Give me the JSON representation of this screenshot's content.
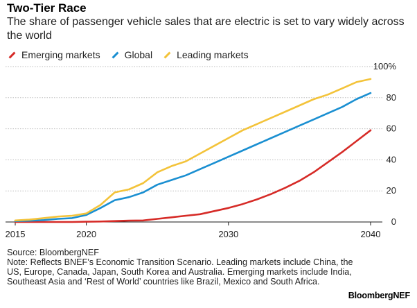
{
  "header": {
    "title": "Two-Tier Race",
    "subtitle": "The share of passenger vehicle sales that are electric is set to vary widely across the world"
  },
  "legend": [
    {
      "label": "Emerging markets",
      "color": "#d62b27"
    },
    {
      "label": "Global",
      "color": "#1a8fd1"
    },
    {
      "label": "Leading markets",
      "color": "#f3c33a"
    }
  ],
  "chart_data": {
    "type": "line",
    "x_ticks": [
      2015,
      2020,
      2030,
      2040
    ],
    "y_ticks": [
      0,
      20,
      40,
      60,
      80,
      100
    ],
    "y_tick_labels": [
      "0",
      "20",
      "40",
      "60",
      "80",
      "100%"
    ],
    "xlim": [
      2015,
      2040
    ],
    "ylim": [
      0,
      100
    ],
    "grid": "horizontal dotted",
    "legend_position": "top-left",
    "x": [
      2015,
      2016,
      2017,
      2018,
      2019,
      2020,
      2021,
      2022,
      2023,
      2024,
      2025,
      2026,
      2027,
      2028,
      2029,
      2030,
      2031,
      2032,
      2033,
      2034,
      2035,
      2036,
      2037,
      2038,
      2039,
      2040
    ],
    "series": [
      {
        "name": "Emerging markets",
        "color": "#d62b27",
        "values": [
          0,
          0,
          0,
          0,
          0,
          0.2,
          0.3,
          0.6,
          0.9,
          1,
          2,
          3,
          4,
          5,
          7,
          9,
          11.5,
          14.5,
          18,
          22,
          26.5,
          32,
          38.5,
          45,
          52,
          59
        ]
      },
      {
        "name": "Global",
        "color": "#1a8fd1",
        "values": [
          0.6,
          0.8,
          1.2,
          2,
          2.5,
          4.5,
          9,
          14,
          16,
          19,
          24,
          27,
          30,
          34,
          38,
          42,
          46,
          50,
          54,
          58,
          62,
          66,
          70,
          74,
          79,
          83
        ]
      },
      {
        "name": "Leading markets",
        "color": "#f3c33a",
        "values": [
          1,
          1.5,
          2.5,
          3.5,
          4,
          5.5,
          11,
          19,
          21,
          25,
          32,
          36,
          39,
          44,
          49,
          54,
          59,
          63,
          67,
          71,
          75,
          79,
          82,
          86,
          90,
          92
        ]
      }
    ]
  },
  "footer": {
    "source": "Source: BloombergNEF",
    "note": "Note: Reflects BNEF’s Economic Transition Scenario. Leading markets include China, the US, Europe, Canada, Japan, South Korea and Australia. Emerging markets include India, Southeast Asia and ‘Rest of World’ countries like Brazil, Mexico and South Africa.",
    "brand": "BloombergNEF"
  }
}
